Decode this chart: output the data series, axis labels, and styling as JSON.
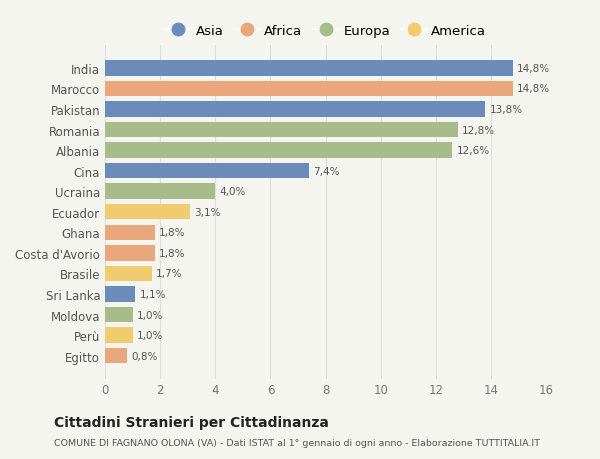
{
  "countries": [
    "India",
    "Marocco",
    "Pakistan",
    "Romania",
    "Albania",
    "Cina",
    "Ucraina",
    "Ecuador",
    "Ghana",
    "Costa d'Avorio",
    "Brasile",
    "Sri Lanka",
    "Moldova",
    "Perù",
    "Egitto"
  ],
  "values": [
    14.8,
    14.8,
    13.8,
    12.8,
    12.6,
    7.4,
    4.0,
    3.1,
    1.8,
    1.8,
    1.7,
    1.1,
    1.0,
    1.0,
    0.8
  ],
  "labels": [
    "14,8%",
    "14,8%",
    "13,8%",
    "12,8%",
    "12,6%",
    "7,4%",
    "4,0%",
    "3,1%",
    "1,8%",
    "1,8%",
    "1,7%",
    "1,1%",
    "1,0%",
    "1,0%",
    "0,8%"
  ],
  "continents": [
    "Asia",
    "Africa",
    "Asia",
    "Europa",
    "Europa",
    "Asia",
    "Europa",
    "America",
    "Africa",
    "Africa",
    "America",
    "Asia",
    "Europa",
    "America",
    "Africa"
  ],
  "colors": {
    "Asia": "#6b8cba",
    "Africa": "#e8a87c",
    "Europa": "#a8bb8a",
    "America": "#f0cc6e"
  },
  "legend_order": [
    "Asia",
    "Africa",
    "Europa",
    "America"
  ],
  "title": "Cittadini Stranieri per Cittadinanza",
  "subtitle": "COMUNE DI FAGNANO OLONA (VA) - Dati ISTAT al 1° gennaio di ogni anno - Elaborazione TUTTITALIA.IT",
  "xlim": [
    0,
    16
  ],
  "xticks": [
    0,
    2,
    4,
    6,
    8,
    10,
    12,
    14,
    16
  ],
  "bg_color": "#f5f5f0",
  "grid_color": "#dddddd"
}
